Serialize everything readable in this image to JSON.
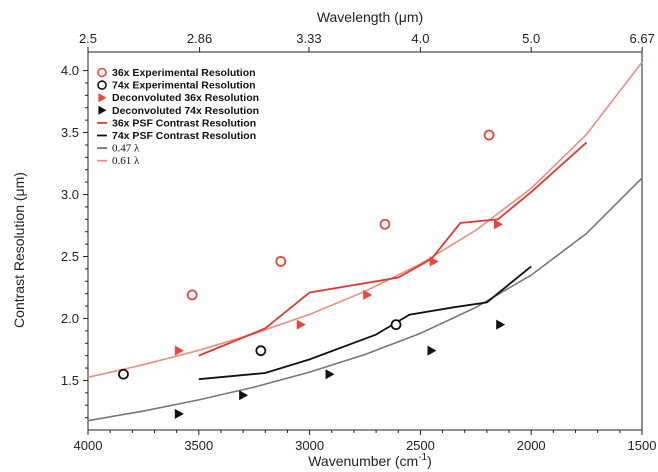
{
  "chart_data": {
    "type": "scatter",
    "title": "",
    "xlabel": "Wavenumber (cm",
    "xlabel_sup": "-1",
    "xlabel_close": ")",
    "x2label": "Wavelength (μm)",
    "ylabel": "Contrast Resolution (μm)",
    "xlim": [
      4000,
      1500
    ],
    "ylim": [
      1.1,
      4.15
    ],
    "x_ticks": [
      4000,
      3500,
      3000,
      2500,
      2000,
      1500
    ],
    "x_tick_labels": [
      "4000",
      "3500",
      "3000",
      "2500",
      "2000",
      "1500"
    ],
    "y_ticks": [
      1.5,
      2.0,
      2.5,
      3.0,
      3.5,
      4.0
    ],
    "y_tick_labels": [
      "1.5",
      "2.0",
      "2.5",
      "3.0",
      "3.5",
      "4.0"
    ],
    "x2_tick_wavelengths": [
      2.5,
      2.86,
      3.33,
      4.0,
      5.0,
      6.67
    ],
    "x2_tick_labels": [
      "2.5",
      "2.86",
      "3.33",
      "4.0",
      "5.0",
      "6.67"
    ],
    "grid": false,
    "legend_position": "top-left",
    "series": [
      {
        "name": "36x Experimental Resolution",
        "kind": "open-circle",
        "color": "#e8453c",
        "x": [
          3530,
          3130,
          2660,
          2190
        ],
        "y": [
          2.19,
          2.46,
          2.76,
          3.48
        ]
      },
      {
        "name": "74x Experimental Resolution",
        "kind": "open-circle",
        "color": "#111111",
        "x": [
          3840,
          3220,
          2610
        ],
        "y": [
          1.55,
          1.74,
          1.95
        ]
      },
      {
        "name": "Deconvoluted 36x Resolution",
        "kind": "triangle",
        "color": "#e8453c",
        "x": [
          3590,
          3040,
          2740,
          2440,
          2150
        ],
        "y": [
          1.74,
          1.95,
          2.19,
          2.46,
          2.76
        ]
      },
      {
        "name": "Deconvoluted 74x Resolution",
        "kind": "triangle",
        "color": "#111111",
        "x": [
          3590,
          3300,
          2910,
          2450,
          2140
        ],
        "y": [
          1.23,
          1.38,
          1.55,
          1.74,
          1.95
        ]
      },
      {
        "name": "36x PSF Contrast Resolution",
        "kind": "line",
        "color": "#e03a30",
        "x": [
          3500,
          3200,
          3000,
          2600,
          2450,
          2320,
          2150,
          2000,
          1750
        ],
        "y": [
          1.7,
          1.92,
          2.21,
          2.33,
          2.48,
          2.77,
          2.8,
          3.02,
          3.42
        ]
      },
      {
        "name": "74x PSF Contrast Resolution",
        "kind": "line",
        "color": "#111111",
        "x": [
          3500,
          3200,
          3000,
          2700,
          2550,
          2350,
          2200,
          2000
        ],
        "y": [
          1.51,
          1.56,
          1.67,
          1.87,
          2.03,
          2.09,
          2.13,
          2.42
        ]
      },
      {
        "name": "0.47 λ",
        "kind": "line",
        "color": "#777777",
        "x": [
          4000,
          3750,
          3500,
          3250,
          3000,
          2750,
          2500,
          2250,
          2000,
          1750,
          1500
        ],
        "y": [
          1.175,
          1.253,
          1.343,
          1.446,
          1.567,
          1.709,
          1.88,
          2.089,
          2.35,
          2.686,
          3.133
        ]
      },
      {
        "name": "0.61 λ",
        "kind": "line",
        "color": "#f08a84",
        "x": [
          4000,
          3750,
          3500,
          3250,
          3000,
          2750,
          2500,
          2250,
          2000,
          1750,
          1500
        ],
        "y": [
          1.525,
          1.627,
          1.743,
          1.877,
          2.033,
          2.218,
          2.44,
          2.711,
          3.05,
          3.486,
          4.067
        ]
      }
    ]
  }
}
